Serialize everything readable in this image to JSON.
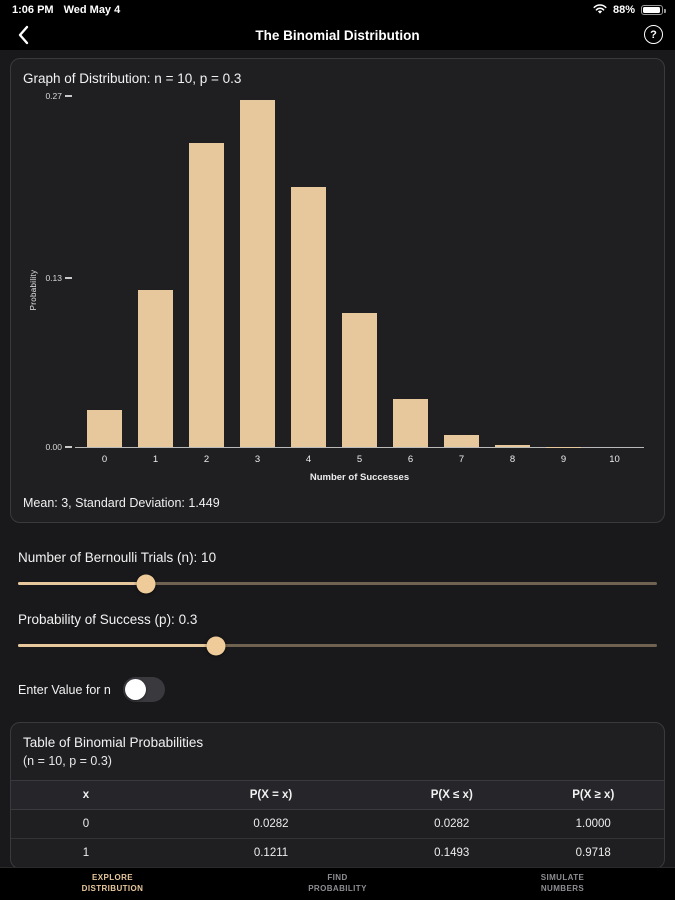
{
  "colors": {
    "accent": "#e7c89c",
    "inactive_tab": "#8e8e93"
  },
  "status_bar": {
    "time": "1:06 PM",
    "date": "Wed May 4",
    "battery_percent": "88%"
  },
  "nav_bar": {
    "title": "The Binomial Distribution",
    "help_label": "?"
  },
  "graph_card": {
    "title": "Graph of Distribution: n = 10, p = 0.3",
    "stats": "Mean: 3, Standard Deviation: 1.449"
  },
  "chart_data": {
    "type": "bar",
    "title": "Graph of Distribution: n = 10, p = 0.3",
    "xlabel": "Number of Successes",
    "ylabel": "Probability",
    "categories": [
      "0",
      "1",
      "2",
      "3",
      "4",
      "5",
      "6",
      "7",
      "8",
      "9",
      "10"
    ],
    "values": [
      0.0282,
      0.1211,
      0.2335,
      0.2668,
      0.2001,
      0.1029,
      0.0368,
      0.009,
      0.0014,
      0.0001,
      0.0
    ],
    "ylim": [
      0,
      0.27
    ],
    "yticks": [
      0.27,
      0.13,
      0.0
    ],
    "bar_color": "#e7c89c",
    "grid": false,
    "legend": false
  },
  "controls": {
    "n_slider": {
      "label": "Number of Bernoulli Trials (n): 10",
      "value": 10,
      "thumb_percent": 20
    },
    "p_slider": {
      "label": "Probability of Success (p): 0.3",
      "value": 0.3,
      "thumb_percent": 31
    },
    "toggle": {
      "label": "Enter Value for n",
      "state": "off"
    }
  },
  "table_card": {
    "title": "Table of Binomial Probabilities",
    "subtitle": "(n = 10, p = 0.3)",
    "columns": [
      "x",
      "P(X = x)",
      "P(X ≤ x)",
      "P(X ≥ x)"
    ],
    "rows": [
      [
        "0",
        "0.0282",
        "0.0282",
        "1.0000"
      ],
      [
        "1",
        "0.1211",
        "0.1493",
        "0.9718"
      ]
    ]
  },
  "tab_bar": {
    "tabs": [
      {
        "line1": "EXPLORE",
        "line2": "DISTRIBUTION",
        "active": true
      },
      {
        "line1": "FIND",
        "line2": "PROBABILITY",
        "active": false
      },
      {
        "line1": "SIMULATE",
        "line2": "NUMBERS",
        "active": false
      }
    ]
  }
}
